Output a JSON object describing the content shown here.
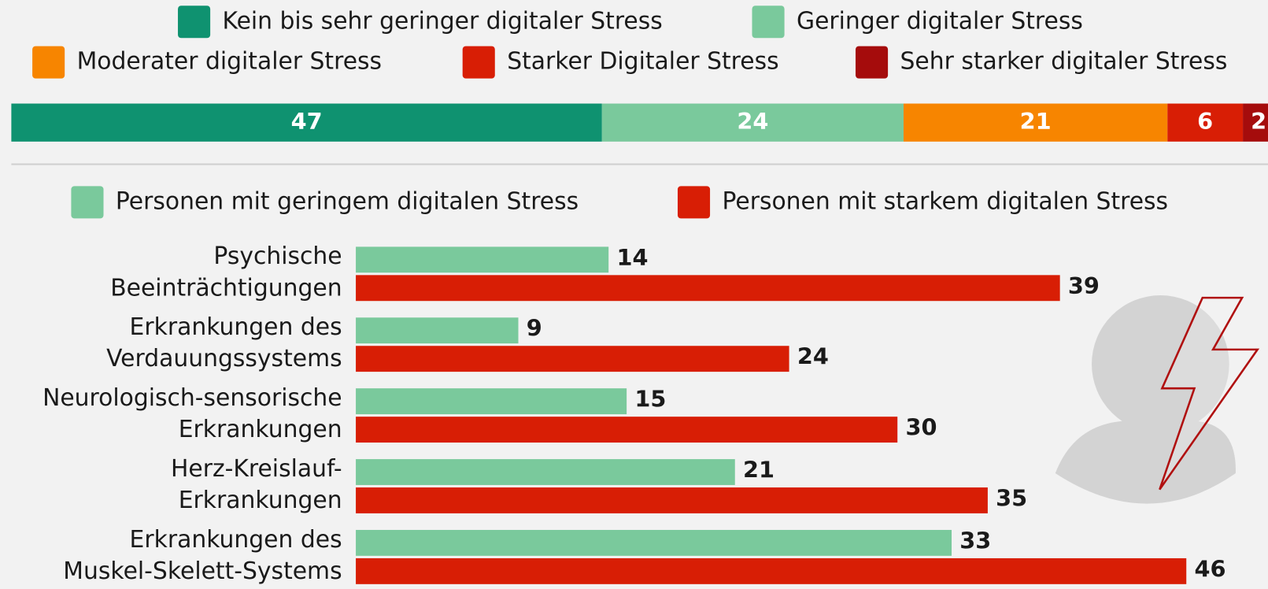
{
  "chart_data": [
    {
      "type": "stacked_bar",
      "series": [
        {
          "name": "Kein bis sehr geringer digitaler Stress",
          "color": "#0f9270",
          "values": [
            47
          ]
        },
        {
          "name": "Geringer digitaler Stress",
          "color": "#7ac99c",
          "values": [
            24
          ]
        },
        {
          "name": "Moderater digitaler Stress",
          "color": "#f78500",
          "values": [
            21
          ]
        },
        {
          "name": "Starker Digitaler Stress",
          "color": "#d81e05",
          "values": [
            6
          ]
        },
        {
          "name": "Sehr starker digitaler Stress",
          "color": "#a50c0c",
          "values": [
            2
          ]
        }
      ]
    },
    {
      "type": "grouped_hbar",
      "categories": [
        [
          "Psychische",
          "Beeinträchtigungen"
        ],
        [
          "Erkrankungen des",
          "Verdauungssystems"
        ],
        [
          "Neurologisch-sensorische",
          "Erkrankungen"
        ],
        [
          "Herz-Kreislauf-",
          "Erkrankungen"
        ],
        [
          "Erkrankungen des",
          "Muskel-Skelett-Systems"
        ]
      ],
      "series": [
        {
          "name": "Personen mit geringem digitalen Stress",
          "color": "#7ac99c",
          "values": [
            14,
            9,
            15,
            21,
            33
          ]
        },
        {
          "name": "Personen mit starkem digitalen Stress",
          "color": "#d81e05",
          "values": [
            39,
            24,
            30,
            35,
            46
          ]
        }
      ]
    }
  ]
}
